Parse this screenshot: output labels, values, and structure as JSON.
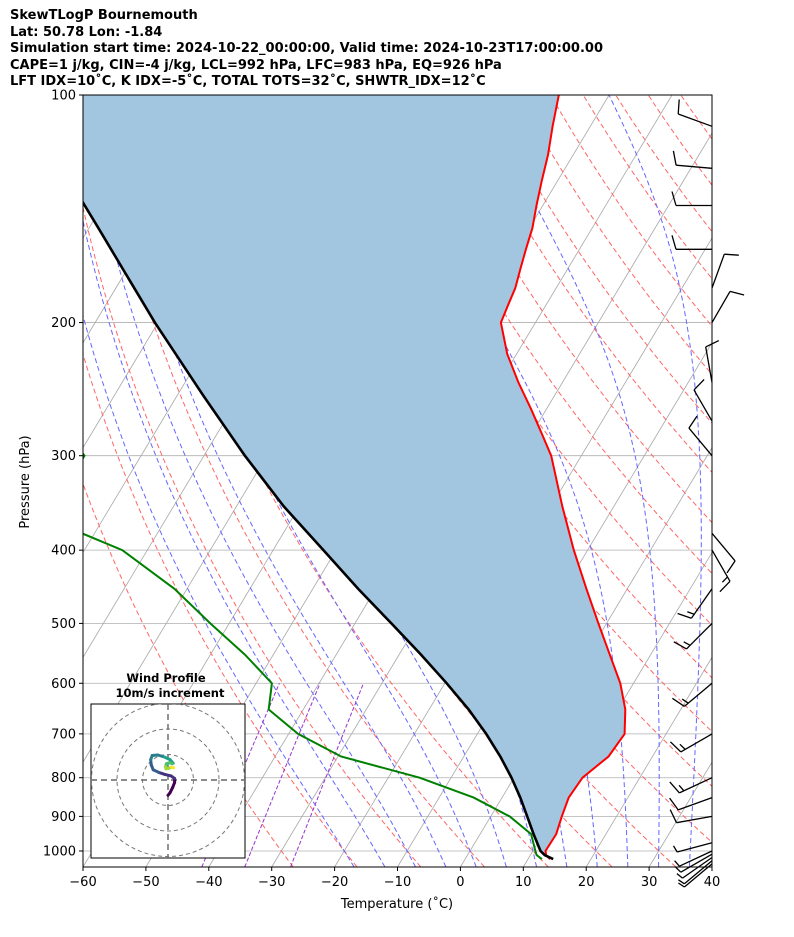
{
  "header": {
    "line1": "SkewTLogP Bournemouth",
    "line2": "Lat: 50.78   Lon: -1.84",
    "line3": "Simulation start time: 2024-10-22_00:00:00, Valid time: 2024-10-23T17:00:00.00",
    "line4": "CAPE=1 j/kg, CIN=-4 j/kg, LCL=992 hPa, LFC=983 hPa, EQ=926 hPa",
    "line5": "LFT IDX=10˚C, K IDX=-5˚C, TOTAL TOTS=32˚C, SHWTR_IDX=12˚C"
  },
  "chart_data": {
    "type": "line",
    "subtype": "skew-t log-p",
    "xlabel": "Temperature (˚C)",
    "ylabel": "Pressure (hPa)",
    "x_ticks": [
      "−60",
      "−50",
      "−40",
      "−30",
      "−20",
      "−10",
      "0",
      "10",
      "20",
      "30",
      "40"
    ],
    "x_tick_values": [
      -60,
      -50,
      -40,
      -30,
      -20,
      -10,
      0,
      10,
      20,
      30,
      40
    ],
    "y_ticks": [
      "100",
      "200",
      "300",
      "400",
      "500",
      "600",
      "700",
      "800",
      "900",
      "1000"
    ],
    "y_tick_values": [
      100,
      200,
      300,
      400,
      500,
      600,
      700,
      800,
      900,
      1000
    ],
    "xlim": [
      -60,
      40
    ],
    "ylim": [
      1050,
      100
    ],
    "y_scale": "log",
    "grid": true,
    "colors": {
      "temperature": "#ff0000",
      "dewpoint": "#008000",
      "parcel": "#000000",
      "shading": "#a2c6df",
      "dry_adiabats": "#ff6666",
      "moist_adiabats": "#6666ff",
      "mixing_ratio": "#9933cc",
      "isotherms": "#aaaaaa",
      "wind_barbs": "#000000"
    },
    "temperature": {
      "p": [
        1025,
        1013,
        1000,
        950,
        900,
        850,
        800,
        750,
        700,
        650,
        600,
        550,
        500,
        450,
        400,
        350,
        300,
        280,
        260,
        240,
        220,
        200,
        190,
        180,
        170,
        160,
        150,
        140,
        130,
        120,
        110,
        100
      ],
      "t": [
        13.5,
        12.5,
        12.0,
        12.1,
        11.3,
        10.6,
        10.9,
        13.0,
        13.4,
        11.2,
        7.9,
        3.5,
        -1.3,
        -6.5,
        -12.2,
        -18.2,
        -24.8,
        -28.5,
        -32.5,
        -37.0,
        -41.5,
        -45.5,
        -46.0,
        -46.5,
        -47.5,
        -48.5,
        -49.5,
        -51.0,
        -52.5,
        -54.0,
        -56.0,
        -58.0
      ]
    },
    "dewpoint": {
      "p": [
        1025,
        1013,
        1000,
        950,
        900,
        850,
        800,
        750,
        700,
        650,
        600,
        550,
        500,
        450,
        400,
        380,
        350,
        320,
        300,
        280,
        260,
        240,
        220,
        200,
        190,
        180,
        170,
        160,
        150,
        140,
        130,
        120,
        110,
        100
      ],
      "td": [
        12.2,
        11.0,
        10.4,
        8.1,
        3.0,
        -4.5,
        -15.0,
        -29.5,
        -38.5,
        -45.5,
        -47.5,
        -54.5,
        -63.0,
        -72.0,
        -84.0,
        -92.0,
        -97.0,
        -99.0,
        -99.0,
        -104.0,
        -108.5,
        -114.0,
        -120.0,
        -126.0,
        -127.5,
        -126.5,
        -128.0,
        -131.0,
        -137.0,
        -140.0,
        -140.5,
        -142.0,
        -142.0,
        -142.5
      ]
    },
    "parcel": {
      "p": [
        1025,
        1013,
        1000,
        950,
        900,
        850,
        800,
        750,
        700,
        650,
        600,
        550,
        500,
        450,
        400,
        350,
        300,
        250,
        200,
        150,
        100
      ],
      "t": [
        14.0,
        12.3,
        11.2,
        8.5,
        5.8,
        2.9,
        -0.4,
        -4.2,
        -8.6,
        -13.7,
        -19.7,
        -26.5,
        -34.2,
        -42.8,
        -52.0,
        -62.5,
        -73.5,
        -85.8,
        -100.5,
        -118.5,
        -144.0
      ]
    },
    "wind_barbs": [
      {
        "p": 1040,
        "dir_deg": 230,
        "speed_kt": 5
      },
      {
        "p": 1030,
        "dir_deg": 230,
        "speed_kt": 5
      },
      {
        "p": 1020,
        "dir_deg": 235,
        "speed_kt": 5
      },
      {
        "p": 1010,
        "dir_deg": 240,
        "speed_kt": 5
      },
      {
        "p": 1000,
        "dir_deg": 245,
        "speed_kt": 5
      },
      {
        "p": 975,
        "dir_deg": 255,
        "speed_kt": 5
      },
      {
        "p": 900,
        "dir_deg": 260,
        "speed_kt": 10
      },
      {
        "p": 850,
        "dir_deg": 250,
        "speed_kt": 10
      },
      {
        "p": 800,
        "dir_deg": 245,
        "speed_kt": 15
      },
      {
        "p": 700,
        "dir_deg": 240,
        "speed_kt": 15
      },
      {
        "p": 600,
        "dir_deg": 230,
        "speed_kt": 15
      },
      {
        "p": 500,
        "dir_deg": 225,
        "speed_kt": 15
      },
      {
        "p": 450,
        "dir_deg": 215,
        "speed_kt": 15
      },
      {
        "p": 400,
        "dir_deg": 150,
        "speed_kt": 15
      },
      {
        "p": 380,
        "dir_deg": 140,
        "speed_kt": 10
      },
      {
        "p": 300,
        "dir_deg": 320,
        "speed_kt": 10
      },
      {
        "p": 270,
        "dir_deg": 330,
        "speed_kt": 10
      },
      {
        "p": 240,
        "dir_deg": 350,
        "speed_kt": 10
      },
      {
        "p": 200,
        "dir_deg": 30,
        "speed_kt": 10
      },
      {
        "p": 180,
        "dir_deg": 20,
        "speed_kt": 10
      },
      {
        "p": 160,
        "dir_deg": 270,
        "speed_kt": 10
      },
      {
        "p": 140,
        "dir_deg": 270,
        "speed_kt": 10
      },
      {
        "p": 125,
        "dir_deg": 275,
        "speed_kt": 10
      },
      {
        "p": 110,
        "dir_deg": 290,
        "speed_kt": 10
      }
    ],
    "hodograph": {
      "title": "Wind Profile",
      "subtitle": "10m/s increment",
      "rings_ms": [
        10,
        20,
        30
      ],
      "u": [
        0.0,
        0.8,
        1.8,
        2.6,
        2.6,
        1.2,
        -1.2,
        -3.6,
        -5.8,
        -6.6,
        -6.8,
        -6.2,
        -4.0,
        -1.4,
        0.8,
        2.0,
        1.6,
        0.6,
        -0.6,
        -1.0,
        -0.8,
        0.2,
        1.4,
        2.2
      ],
      "v": [
        -6.0,
        -5.0,
        -3.0,
        -1.0,
        0.6,
        1.6,
        2.2,
        3.0,
        4.0,
        6.0,
        8.0,
        9.6,
        9.8,
        9.0,
        8.0,
        6.6,
        6.4,
        6.8,
        6.4,
        5.2,
        4.4,
        4.6,
        5.0,
        4.8
      ]
    }
  }
}
